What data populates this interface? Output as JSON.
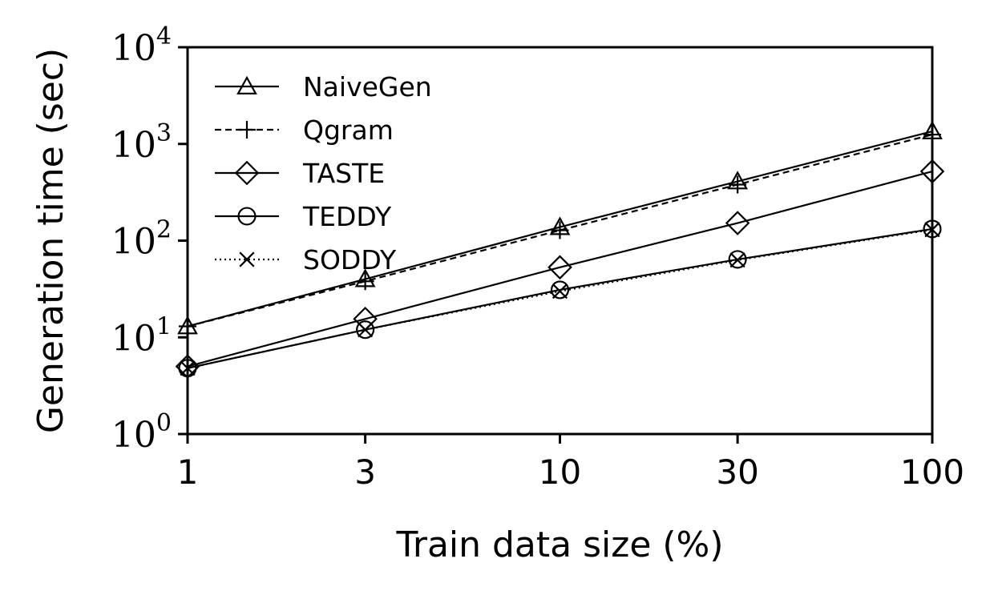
{
  "chart_data": {
    "type": "line",
    "xlabel": "Train data size (%)",
    "ylabel": "Generation time (sec)",
    "x_scale": "log",
    "y_scale": "log",
    "xlim": [
      1,
      100
    ],
    "ylim": [
      1,
      10000
    ],
    "x_ticks": [
      1,
      3,
      10,
      30,
      100
    ],
    "x_tick_labels": [
      "1",
      "3",
      "10",
      "30",
      "100"
    ],
    "y_ticks": [
      1,
      10,
      100,
      1000,
      10000
    ],
    "y_tick_base": "10",
    "y_tick_exponents": [
      "0",
      "1",
      "2",
      "3",
      "4"
    ],
    "legend_position": "top-left",
    "grid": false,
    "x": [
      1,
      3,
      10,
      30,
      100
    ],
    "series": [
      {
        "name": "NaiveGen",
        "marker": "triangle",
        "linestyle": "solid",
        "values": [
          13,
          40,
          138,
          410,
          1350
        ]
      },
      {
        "name": "Qgram",
        "marker": "plus",
        "linestyle": "dashed",
        "values": [
          13,
          38,
          128,
          380,
          1250
        ]
      },
      {
        "name": "TASTE",
        "marker": "diamond",
        "linestyle": "solid",
        "values": [
          5,
          15.5,
          53,
          152,
          520
        ]
      },
      {
        "name": "TEDDY",
        "marker": "circle",
        "linestyle": "solid",
        "values": [
          4.8,
          12,
          31,
          64,
          132
        ]
      },
      {
        "name": "SODDY",
        "marker": "x",
        "linestyle": "dotted",
        "values": [
          4.8,
          12,
          30,
          63,
          130
        ]
      }
    ]
  }
}
